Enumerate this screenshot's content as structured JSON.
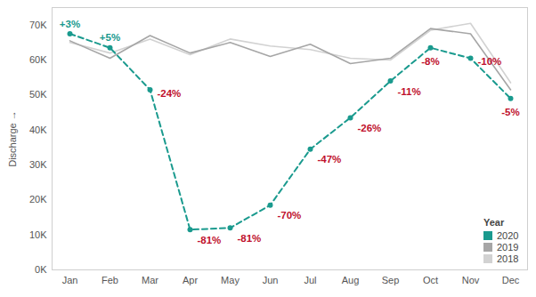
{
  "chart_data": {
    "type": "line",
    "y_label": "Discharge",
    "categories": [
      "Jan",
      "Feb",
      "Mar",
      "Apr",
      "May",
      "Jun",
      "Jul",
      "Aug",
      "Sep",
      "Oct",
      "Nov",
      "Dec"
    ],
    "series": [
      {
        "name": "2020",
        "color": "#1a9a8e",
        "marker": "circle",
        "line_style": "dashed",
        "values": [
          67500,
          63500,
          51500,
          11500,
          12000,
          18500,
          34500,
          43500,
          54000,
          63500,
          60500,
          49000
        ]
      },
      {
        "name": "2019",
        "color": "#a6a6a6",
        "line_style": "solid",
        "values": [
          65500,
          60500,
          67000,
          62000,
          65000,
          61000,
          64500,
          59000,
          60500,
          69000,
          67500,
          51500
        ]
      },
      {
        "name": "2018",
        "color": "#d2d2d2",
        "line_style": "solid",
        "values": [
          65000,
          62000,
          66000,
          61500,
          66000,
          64000,
          63000,
          60500,
          60000,
          68500,
          70500,
          53500
        ]
      }
    ],
    "annotations": [
      {
        "series": "2020",
        "x": "Jan",
        "text": "+3%",
        "color": "#1a9a8e"
      },
      {
        "series": "2020",
        "x": "Feb",
        "text": "+5%",
        "color": "#1a9a8e"
      },
      {
        "series": "2020",
        "x": "Mar",
        "text": "-24%",
        "color": "#c0102c"
      },
      {
        "series": "2020",
        "x": "Apr",
        "text": "-81%",
        "color": "#c0102c"
      },
      {
        "series": "2020",
        "x": "May",
        "text": "-81%",
        "color": "#c0102c"
      },
      {
        "series": "2020",
        "x": "Jun",
        "text": "-70%",
        "color": "#c0102c"
      },
      {
        "series": "2020",
        "x": "Jul",
        "text": "-47%",
        "color": "#c0102c"
      },
      {
        "series": "2020",
        "x": "Aug",
        "text": "-26%",
        "color": "#c0102c"
      },
      {
        "series": "2020",
        "x": "Sep",
        "text": "-11%",
        "color": "#c0102c"
      },
      {
        "series": "2020",
        "x": "Oct",
        "text": "-8%",
        "color": "#c0102c"
      },
      {
        "series": "2020",
        "x": "Nov",
        "text": "-10%",
        "color": "#c0102c"
      },
      {
        "series": "2020",
        "x": "Dec",
        "text": "-5%",
        "color": "#c0102c"
      }
    ],
    "ylim": [
      0,
      75000
    ],
    "yticks": [
      {
        "value": 0,
        "label": "0K"
      },
      {
        "value": 10000,
        "label": "10K"
      },
      {
        "value": 20000,
        "label": "20K"
      },
      {
        "value": 30000,
        "label": "30K"
      },
      {
        "value": 40000,
        "label": "40K"
      },
      {
        "value": 50000,
        "label": "50K"
      },
      {
        "value": 60000,
        "label": "60K"
      },
      {
        "value": 70000,
        "label": "70K"
      }
    ],
    "grid": false,
    "legend": "bottom-right",
    "legend_title": "Year"
  }
}
